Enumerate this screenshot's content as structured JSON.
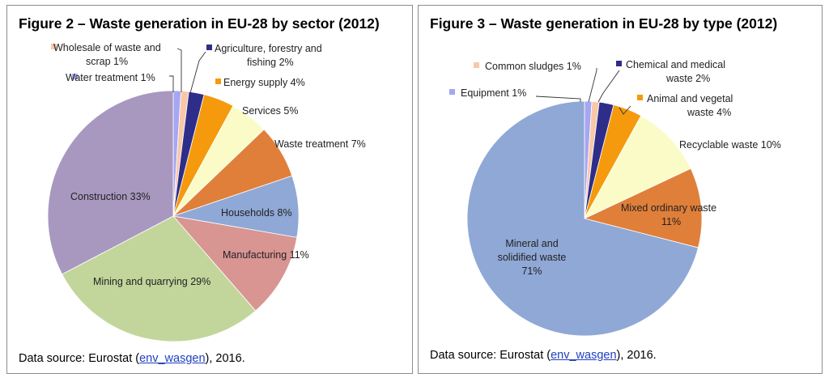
{
  "chart_data": [
    {
      "type": "pie",
      "title": "Figure 2 – Waste generation in EU-28 by sector (2012)",
      "source_prefix": "Data source: Eurostat (",
      "source_link": "env_wasgen",
      "source_suffix": "), 2016.",
      "slices": [
        {
          "name": "Water treatment",
          "value": 1,
          "label_lines": [
            "Water treatment 1%"
          ],
          "color": "#a6a6f2"
        },
        {
          "name": "Wholesale of waste and scrap",
          "value": 1,
          "label_lines": [
            "Wholesale of waste and",
            "scrap 1%"
          ],
          "color": "#f8c8a8"
        },
        {
          "name": "Agriculture, forestry and fishing",
          "value": 2,
          "label_lines": [
            "Agriculture, forestry and",
            "fishing 2%"
          ],
          "color": "#2e2e8a"
        },
        {
          "name": "Energy supply",
          "value": 4,
          "label_lines": [
            "Energy supply 4%"
          ],
          "color": "#f59a0c"
        },
        {
          "name": "Services",
          "value": 5,
          "label_lines": [
            "Services 5%"
          ],
          "color": "#fbfbc8"
        },
        {
          "name": "Waste treatment",
          "value": 7,
          "label_lines": [
            "Waste treatment 7%"
          ],
          "color": "#e07f3a"
        },
        {
          "name": "Households",
          "value": 8,
          "label_lines": [
            "Households 8%"
          ],
          "color": "#8fa8d6"
        },
        {
          "name": "Manufacturing",
          "value": 11,
          "label_lines": [
            "Manufacturing 11%"
          ],
          "color": "#d99592"
        },
        {
          "name": "Mining and quarrying",
          "value": 29,
          "label_lines": [
            "Mining and quarrying 29%"
          ],
          "color": "#c2d69b"
        },
        {
          "name": "Construction",
          "value": 33,
          "label_lines": [
            "Construction 33%"
          ],
          "color": "#a898c0"
        }
      ]
    },
    {
      "type": "pie",
      "title": "Figure 3 – Waste generation in EU-28 by type (2012)",
      "source_prefix": "Data source: Eurostat (",
      "source_link": "env_wasgen",
      "source_suffix": "), 2016.",
      "slices": [
        {
          "name": "Equipment",
          "value": 1,
          "label_lines": [
            "Equipment 1%"
          ],
          "color": "#a6a6f2"
        },
        {
          "name": "Common sludges",
          "value": 1,
          "label_lines": [
            "Common sludges 1%"
          ],
          "color": "#f8c8a8"
        },
        {
          "name": "Chemical and medical waste",
          "value": 2,
          "label_lines": [
            "Chemical and medical",
            "waste 2%"
          ],
          "color": "#2e2e8a"
        },
        {
          "name": "Animal and vegetal waste",
          "value": 4,
          "label_lines": [
            "Animal and vegetal",
            "waste 4%"
          ],
          "color": "#f59a0c"
        },
        {
          "name": "Recyclable waste",
          "value": 10,
          "label_lines": [
            "Recyclable waste 10%"
          ],
          "color": "#fbfbc8"
        },
        {
          "name": "Mixed ordinary waste",
          "value": 11,
          "label_lines": [
            "Mixed ordinary waste",
            "11%"
          ],
          "color": "#e07f3a"
        },
        {
          "name": "Mineral and solidified waste",
          "value": 71,
          "label_lines": [
            "Mineral and",
            "solidified waste",
            "71%"
          ],
          "color": "#8fa8d6"
        }
      ]
    }
  ]
}
